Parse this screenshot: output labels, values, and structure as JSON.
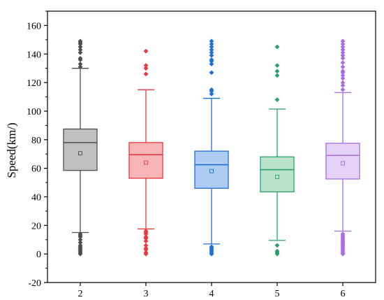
{
  "chart_data": {
    "type": "box",
    "title": "",
    "xlabel": "",
    "ylabel": "Speed(km/)",
    "ylim": [
      -20,
      170
    ],
    "yticks": [
      -20,
      0,
      20,
      40,
      60,
      80,
      100,
      120,
      140,
      160
    ],
    "grid": false,
    "categories": [
      "2",
      "3",
      "4",
      "5",
      "6"
    ],
    "boxes": [
      {
        "category": "2",
        "color": "#4d4d4d",
        "fill": "#c0c0c0",
        "whisker_low": 15,
        "q1": 58.5,
        "median": 78,
        "q3": 87.5,
        "whisker_high": 130,
        "mean": 70.5,
        "outliers": [
          0,
          1,
          2,
          3,
          4,
          5,
          6,
          8,
          10,
          12,
          13,
          14,
          131,
          133,
          136,
          137,
          141,
          143,
          145,
          147,
          148,
          149
        ]
      },
      {
        "category": "3",
        "color": "#e8383d",
        "fill": "#f7b5b8",
        "whisker_low": 17.5,
        "q1": 53,
        "median": 69.5,
        "q3": 78,
        "whisker_high": 115,
        "mean": 64,
        "outliers": [
          0,
          1,
          3,
          4,
          6,
          9,
          11,
          12,
          14,
          15,
          16,
          126,
          130,
          132,
          142
        ]
      },
      {
        "category": "4",
        "color": "#1f6fd6",
        "fill": "#aecbf2",
        "whisker_low": 7,
        "q1": 46,
        "median": 62.5,
        "q3": 72,
        "whisker_high": 109,
        "mean": 58,
        "outliers": [
          0,
          1,
          2,
          3,
          4,
          5,
          112,
          114,
          115,
          127,
          133,
          135,
          136,
          139,
          141,
          143,
          145,
          147,
          149
        ]
      },
      {
        "category": "5",
        "color": "#2aa06b",
        "fill": "#b9e3cd",
        "whisker_low": 9.5,
        "q1": 43.5,
        "median": 59,
        "q3": 68,
        "whisker_high": 101.5,
        "mean": 54,
        "outliers": [
          0,
          1,
          2,
          6,
          108,
          125,
          128,
          132,
          145
        ]
      },
      {
        "category": "6",
        "color": "#a86de6",
        "fill": "#e6d2f7",
        "whisker_low": 16,
        "q1": 52.5,
        "median": 69,
        "q3": 77.5,
        "whisker_high": 113,
        "mean": 63.5,
        "outliers": [
          0,
          1,
          2,
          3,
          4,
          5,
          6,
          7,
          8,
          9,
          10,
          11,
          12,
          13,
          14,
          115,
          118,
          120,
          123,
          125,
          127,
          128,
          131,
          134,
          137,
          139,
          141,
          143,
          145,
          147,
          149
        ]
      }
    ]
  }
}
